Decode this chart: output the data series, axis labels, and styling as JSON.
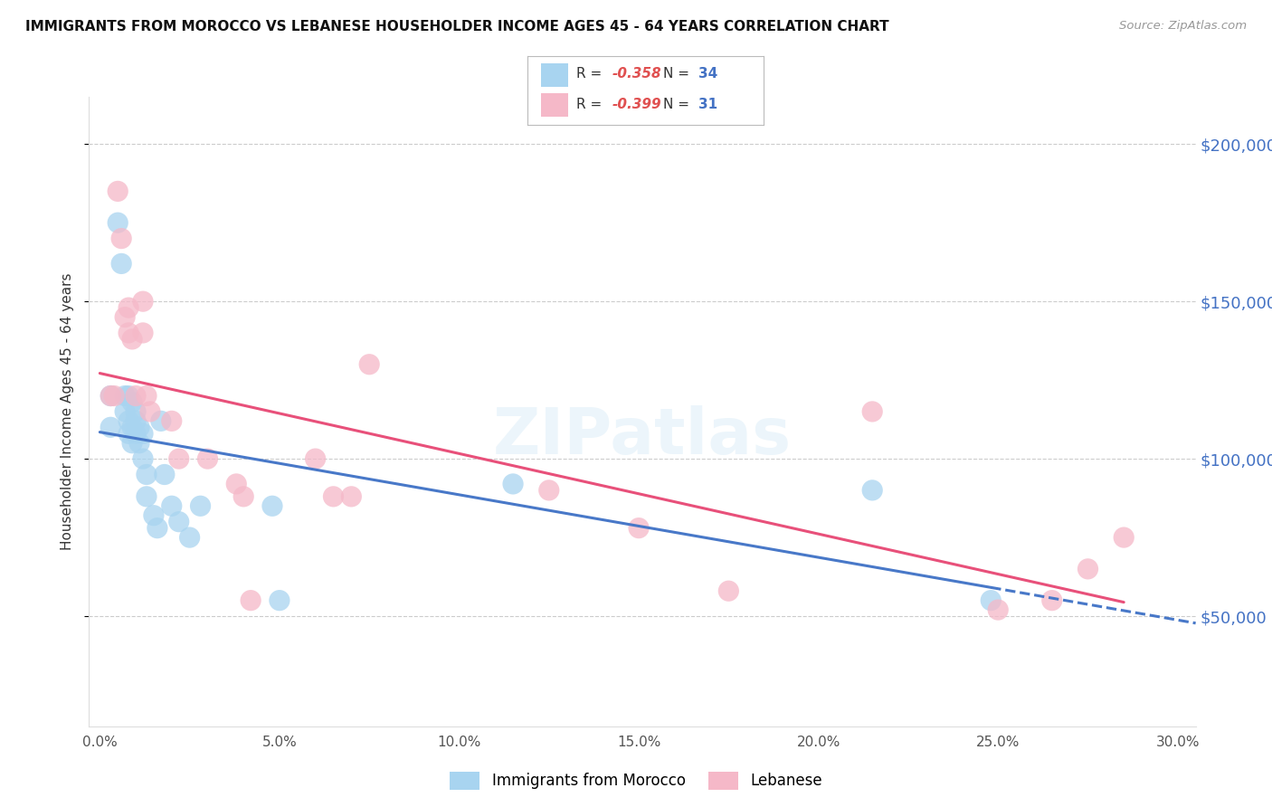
{
  "title": "IMMIGRANTS FROM MOROCCO VS LEBANESE HOUSEHOLDER INCOME AGES 45 - 64 YEARS CORRELATION CHART",
  "source": "Source: ZipAtlas.com",
  "ylabel": "Householder Income Ages 45 - 64 years",
  "xlabel_ticks": [
    "0.0%",
    "5.0%",
    "10.0%",
    "15.0%",
    "20.0%",
    "25.0%",
    "30.0%"
  ],
  "xlabel_vals": [
    0.0,
    0.05,
    0.1,
    0.15,
    0.2,
    0.25,
    0.3
  ],
  "ytick_labels": [
    "$50,000",
    "$100,000",
    "$150,000",
    "$200,000"
  ],
  "ytick_vals": [
    50000,
    100000,
    150000,
    200000
  ],
  "xlim": [
    -0.003,
    0.305
  ],
  "ylim": [
    15000,
    215000
  ],
  "morocco_color": "#a8d4f0",
  "lebanese_color": "#f5b8c8",
  "morocco_edge_color": "#7ab8e0",
  "lebanese_edge_color": "#e890a8",
  "morocco_line_color": "#4878c8",
  "lebanese_line_color": "#e8507a",
  "morocco_R": "-0.358",
  "morocco_N": "34",
  "lebanese_R": "-0.399",
  "lebanese_N": "31",
  "legend_label1": "Immigrants from Morocco",
  "legend_label2": "Lebanese",
  "morocco_x": [
    0.003,
    0.003,
    0.005,
    0.006,
    0.007,
    0.007,
    0.008,
    0.008,
    0.008,
    0.009,
    0.009,
    0.009,
    0.01,
    0.01,
    0.01,
    0.011,
    0.011,
    0.012,
    0.012,
    0.013,
    0.013,
    0.015,
    0.016,
    0.017,
    0.018,
    0.02,
    0.022,
    0.025,
    0.028,
    0.048,
    0.05,
    0.115,
    0.215,
    0.248
  ],
  "morocco_y": [
    120000,
    110000,
    175000,
    162000,
    120000,
    115000,
    120000,
    112000,
    108000,
    118000,
    110000,
    105000,
    115000,
    112000,
    108000,
    110000,
    105000,
    108000,
    100000,
    95000,
    88000,
    82000,
    78000,
    112000,
    95000,
    85000,
    80000,
    75000,
    85000,
    85000,
    55000,
    92000,
    90000,
    55000
  ],
  "lebanese_x": [
    0.003,
    0.004,
    0.005,
    0.006,
    0.007,
    0.008,
    0.008,
    0.009,
    0.01,
    0.012,
    0.012,
    0.013,
    0.014,
    0.02,
    0.022,
    0.03,
    0.038,
    0.04,
    0.042,
    0.06,
    0.065,
    0.07,
    0.075,
    0.125,
    0.15,
    0.175,
    0.215,
    0.25,
    0.265,
    0.275,
    0.285
  ],
  "lebanese_y": [
    120000,
    120000,
    185000,
    170000,
    145000,
    148000,
    140000,
    138000,
    120000,
    150000,
    140000,
    120000,
    115000,
    112000,
    100000,
    100000,
    92000,
    88000,
    55000,
    100000,
    88000,
    88000,
    130000,
    90000,
    78000,
    58000,
    115000,
    52000,
    55000,
    65000,
    75000
  ]
}
